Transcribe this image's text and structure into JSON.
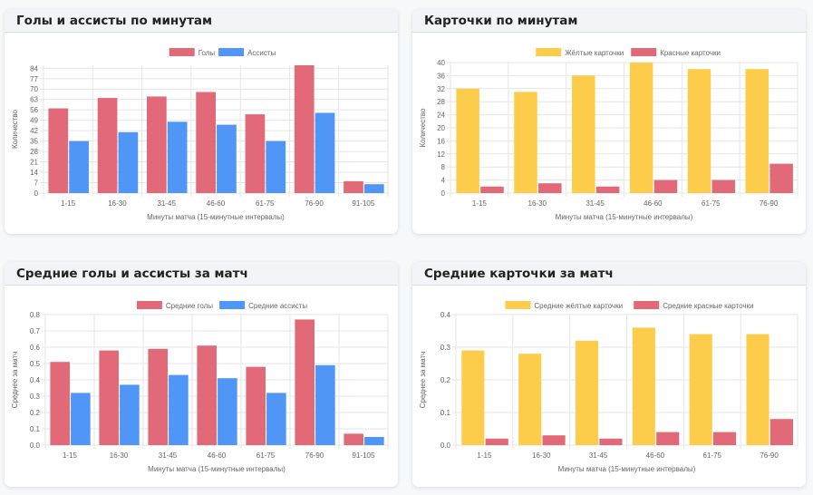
{
  "chart_data": [
    {
      "type": "bar",
      "title": "Голы и ассисты по минутам",
      "categories": [
        "1-15",
        "16-30",
        "31-45",
        "46-60",
        "61-75",
        "76-90",
        "91-105"
      ],
      "series": [
        {
          "name": "Голы",
          "color": "#e26a78",
          "values": [
            57,
            64,
            65,
            68,
            53,
            86,
            8
          ]
        },
        {
          "name": "Ассисты",
          "color": "#4f96f6",
          "values": [
            35,
            41,
            48,
            46,
            35,
            54,
            6
          ]
        }
      ],
      "xlabel": "Минуты матча (15-минутные интервалы)",
      "ylabel": "Количество",
      "ylim": [
        0,
        86
      ],
      "yticks": [
        0,
        7,
        14,
        21,
        28,
        35,
        42,
        49,
        56,
        63,
        70,
        77,
        84
      ],
      "ytick_labels": [
        "0",
        "7",
        "14",
        "21",
        "28",
        "35",
        "42",
        "49",
        "56",
        "63",
        "70",
        "77",
        "84"
      ],
      "legend": "top-center",
      "grid": true
    },
    {
      "type": "bar",
      "title": "Карточки по минутам",
      "categories": [
        "1-15",
        "16-30",
        "31-45",
        "46-60",
        "61-75",
        "76-90"
      ],
      "series": [
        {
          "name": "Жёлтые карточки",
          "color": "#fdcc4a",
          "values": [
            32,
            31,
            36,
            40,
            38,
            38
          ]
        },
        {
          "name": "Красные карточки",
          "color": "#e26a78",
          "values": [
            2,
            3,
            2,
            4,
            4,
            9
          ]
        }
      ],
      "xlabel": "Минуты матча (15-минутные интервалы)",
      "ylabel": "Количество",
      "ylim": [
        0,
        40
      ],
      "yticks": [
        0,
        4,
        8,
        12,
        16,
        20,
        24,
        28,
        32,
        36,
        40
      ],
      "ytick_labels": [
        "0",
        "4",
        "8",
        "12",
        "16",
        "20",
        "24",
        "28",
        "32",
        "36",
        "40"
      ],
      "legend": "top-center",
      "grid": true
    },
    {
      "type": "bar",
      "title": "Средние голы и ассисты за матч",
      "categories": [
        "1-15",
        "16-30",
        "31-45",
        "46-60",
        "61-75",
        "76-90",
        "91-105"
      ],
      "series": [
        {
          "name": "Средние голы",
          "color": "#e26a78",
          "values": [
            0.51,
            0.58,
            0.59,
            0.61,
            0.48,
            0.77,
            0.07
          ]
        },
        {
          "name": "Средние ассисты",
          "color": "#4f96f6",
          "values": [
            0.32,
            0.37,
            0.43,
            0.41,
            0.32,
            0.49,
            0.05
          ]
        }
      ],
      "xlabel": "Минуты матча (15-минутные интервалы)",
      "ylabel": "Среднее за матч",
      "ylim": [
        0,
        0.8
      ],
      "yticks": [
        0,
        0.1,
        0.2,
        0.3,
        0.4,
        0.5,
        0.6,
        0.7,
        0.8
      ],
      "ytick_labels": [
        "0.0",
        "0.1",
        "0.2",
        "0.3",
        "0.4",
        "0.5",
        "0.6",
        "0.7",
        "0.8"
      ],
      "legend": "top-center",
      "grid": true
    },
    {
      "type": "bar",
      "title": "Средние карточки за матч",
      "categories": [
        "1-15",
        "16-30",
        "31-45",
        "46-60",
        "61-75",
        "76-90"
      ],
      "series": [
        {
          "name": "Средние жёлтые карточки",
          "color": "#fdcc4a",
          "values": [
            0.29,
            0.28,
            0.32,
            0.36,
            0.34,
            0.34
          ]
        },
        {
          "name": "Средние красные карточки",
          "color": "#e26a78",
          "values": [
            0.02,
            0.03,
            0.02,
            0.04,
            0.04,
            0.08
          ]
        }
      ],
      "xlabel": "Минуты матча (15-минутные интервалы)",
      "ylabel": "Среднее за матч",
      "ylim": [
        0,
        0.4
      ],
      "yticks": [
        0,
        0.1,
        0.2,
        0.3,
        0.4
      ],
      "ytick_labels": [
        "0.0",
        "0.1",
        "0.2",
        "0.3",
        "0.4"
      ],
      "legend": "top-center",
      "grid": true
    }
  ]
}
